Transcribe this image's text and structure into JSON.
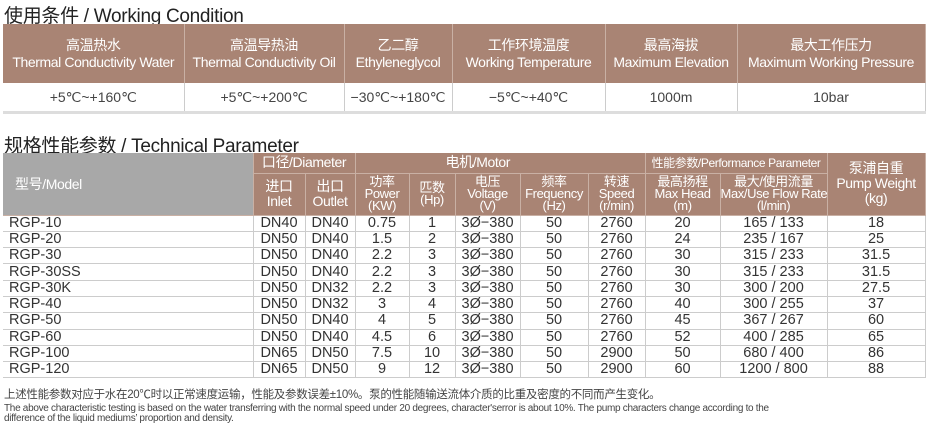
{
  "working_condition": {
    "title": "使用条件 / Working Condition",
    "columns": [
      {
        "cn": "高温热水",
        "en": "Thermal Conductivity Water",
        "value": "+5℃~+160℃"
      },
      {
        "cn": "高温导热油",
        "en": "Thermal Conductivity Oil",
        "value": "+5℃~+200℃"
      },
      {
        "cn": "乙二醇",
        "en": "Ethyleneglycol",
        "value": "−30℃~+180℃"
      },
      {
        "cn": "工作环境温度",
        "en": "Working Temperature",
        "value": "−5℃~+40℃"
      },
      {
        "cn": "最高海拔",
        "en": "Maximum Elevation",
        "value": "1000m"
      },
      {
        "cn": "最大工作压力",
        "en": "Maximum Working Pressure",
        "value": "10bar"
      }
    ]
  },
  "technical": {
    "title": "规格性能参数 / Technical Parameter",
    "model_header": "型号/Model",
    "diameter_header": "口径/Diameter",
    "motor_header": "电机/Motor",
    "performance_header": "性能参数/Performance Parameter",
    "weight_header": {
      "cn": "泵浦自重",
      "en": "Pump Weight",
      "unit": "(kg)"
    },
    "sub_headers": [
      {
        "cn": "进口",
        "en": "Inlet"
      },
      {
        "cn": "出口",
        "en": "Outlet"
      },
      {
        "cn": "功率",
        "en": "Power",
        "unit": "(KW)"
      },
      {
        "cn": "匹数",
        "en": "(Hp)"
      },
      {
        "cn": "电压",
        "en": "Voltage",
        "unit": "(V)"
      },
      {
        "cn": "频率",
        "en": "Frequency",
        "unit": "(Hz)"
      },
      {
        "cn": "转速",
        "en": "Speed",
        "unit": "(r/min)"
      },
      {
        "cn": "最高扬程",
        "en": "Max Head",
        "unit": "(m)"
      },
      {
        "cn": "最大/使用流量",
        "en": "Max/Use Flow Rate",
        "unit": "(l/min)"
      }
    ],
    "rows": [
      [
        "RGP-10",
        "DN40",
        "DN40",
        "0.75",
        "1",
        "3Ø−380",
        "50",
        "2760",
        "20",
        "165 / 133",
        "18"
      ],
      [
        "RGP-20",
        "DN50",
        "DN40",
        "1.5",
        "2",
        "3Ø−380",
        "50",
        "2760",
        "24",
        "235 / 167",
        "25"
      ],
      [
        "RGP-30",
        "DN50",
        "DN40",
        "2.2",
        "3",
        "3Ø−380",
        "50",
        "2760",
        "30",
        "315 / 233",
        "31.5"
      ],
      [
        "RGP-30SS",
        "DN50",
        "DN40",
        "2.2",
        "3",
        "3Ø−380",
        "50",
        "2760",
        "30",
        "315 / 233",
        "31.5"
      ],
      [
        "RGP-30K",
        "DN50",
        "DN32",
        "2.2",
        "3",
        "3Ø−380",
        "50",
        "2760",
        "30",
        "300 / 200",
        "27.5"
      ],
      [
        "RGP-40",
        "DN50",
        "DN32",
        "3",
        "4",
        "3Ø−380",
        "50",
        "2760",
        "40",
        "300 / 255",
        "37"
      ],
      [
        "RGP-50",
        "DN50",
        "DN40",
        "4",
        "5",
        "3Ø−380",
        "50",
        "2760",
        "45",
        "367 / 267",
        "60"
      ],
      [
        "RGP-60",
        "DN50",
        "DN40",
        "4.5",
        "6",
        "3Ø−380",
        "50",
        "2760",
        "52",
        "400 / 285",
        "65"
      ],
      [
        "RGP-100",
        "DN65",
        "DN50",
        "7.5",
        "10",
        "3Ø−380",
        "50",
        "2900",
        "50",
        "680 / 400",
        "86"
      ],
      [
        "RGP-120",
        "DN65",
        "DN50",
        "9",
        "12",
        "3Ø−380",
        "50",
        "2900",
        "60",
        "1200 / 800",
        "88"
      ]
    ]
  },
  "notes": {
    "cn": "上述性能参数对应于水在20℃时以正常速度运输，性能及参数误差±10%。泵的性能随输送流体介质的比重及密度的不同而产生变化。",
    "en1": "The above characteristic testing is based on the water transferring with the normal speed under 20 degrees,  character'serror is about 10%. The pump characters change according to the",
    "en2": "difference of the liquid mediums’  proportion and density."
  },
  "colors": {
    "header": "#a98474",
    "model_header": "#a8a8a8"
  }
}
